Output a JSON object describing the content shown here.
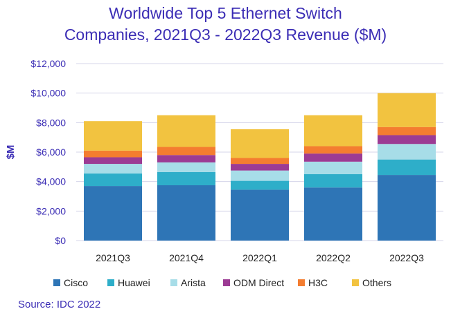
{
  "chart_data": {
    "type": "bar",
    "stacked": true,
    "title_lines": [
      "Worldwide Top 5 Ethernet Switch",
      "Companies, 2021Q3 - 2022Q3 Revenue ($M)"
    ],
    "ylabel": "$M",
    "xlabel": "",
    "ylim": [
      0,
      12000
    ],
    "yticks": [
      0,
      2000,
      4000,
      6000,
      8000,
      10000,
      12000
    ],
    "ytick_labels": [
      "$0",
      "$2,000",
      "$4,000",
      "$6,000",
      "$8,000",
      "$10,000",
      "$12,000"
    ],
    "categories": [
      "2021Q3",
      "2021Q4",
      "2022Q1",
      "2022Q2",
      "2022Q3"
    ],
    "series": [
      {
        "name": "Cisco",
        "color": "#2e75b6",
        "values": [
          3700,
          3750,
          3450,
          3600,
          4450
        ]
      },
      {
        "name": "Huawei",
        "color": "#2eaec9",
        "values": [
          850,
          900,
          600,
          900,
          1050
        ]
      },
      {
        "name": "Arista",
        "color": "#a7dde8",
        "values": [
          650,
          650,
          700,
          850,
          1050
        ]
      },
      {
        "name": "ODM Direct",
        "color": "#9c3b94",
        "values": [
          450,
          500,
          450,
          550,
          600
        ]
      },
      {
        "name": "H3C",
        "color": "#f47d30",
        "values": [
          450,
          550,
          400,
          500,
          550
        ]
      },
      {
        "name": "Others",
        "color": "#f2c340",
        "values": [
          2000,
          2150,
          1950,
          2100,
          2300
        ]
      }
    ],
    "grid": true,
    "legend_position": "bottom",
    "source": "Source: IDC 2022",
    "axis_color": "#3b2db5",
    "grid_color": "#d4d4ea",
    "tick_label_color": "#222222"
  }
}
